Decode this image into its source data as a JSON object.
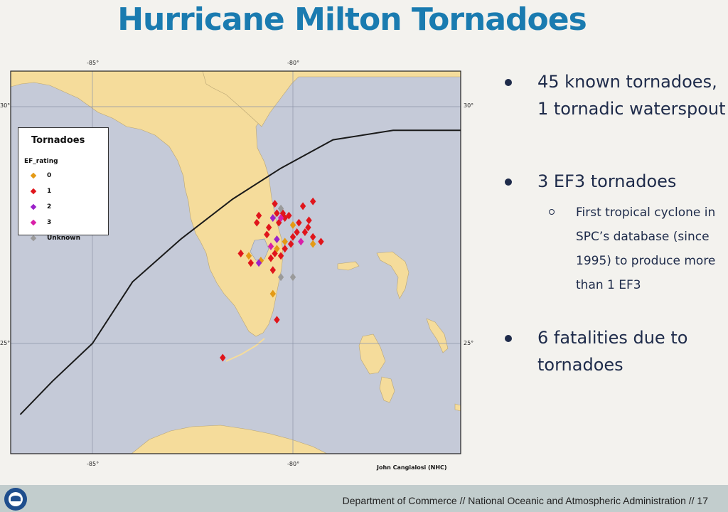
{
  "slide": {
    "title": "Hurricane Milton Tornadoes"
  },
  "map": {
    "lon_ticks": [
      "-85°",
      "-80°"
    ],
    "lat_ticks": [
      "30°",
      "25°"
    ],
    "credit": "John Cangialosi (NHC)",
    "colors": {
      "water": "#c5cad8",
      "land": "#f5dc9b",
      "track": "#1a1a1a",
      "grid": "#8d95a8"
    },
    "legend": {
      "title": "Tornadoes",
      "subtitle": "EF_rating",
      "items": [
        {
          "label": "0",
          "color": "#e49a15"
        },
        {
          "label": "1",
          "color": "#e0151b"
        },
        {
          "label": "2",
          "color": "#9b22c9"
        },
        {
          "label": "3",
          "color": "#d91fa8"
        },
        {
          "label": "Unknown",
          "color": "#9a9a9a"
        }
      ]
    },
    "tornadoes": [
      {
        "lon": -79.5,
        "lat": 28.0,
        "rating": "1"
      },
      {
        "lon": -79.6,
        "lat": 27.6,
        "rating": "1"
      },
      {
        "lon": -79.62,
        "lat": 27.45,
        "rating": "1"
      },
      {
        "lon": -79.7,
        "lat": 27.35,
        "rating": "1"
      },
      {
        "lon": -79.5,
        "lat": 27.25,
        "rating": "1"
      },
      {
        "lon": -79.3,
        "lat": 27.15,
        "rating": "1"
      },
      {
        "lon": -79.5,
        "lat": 27.1,
        "rating": "0"
      },
      {
        "lon": -79.75,
        "lat": 27.9,
        "rating": "1"
      },
      {
        "lon": -79.85,
        "lat": 27.55,
        "rating": "1"
      },
      {
        "lon": -79.9,
        "lat": 27.35,
        "rating": "1"
      },
      {
        "lon": -80.0,
        "lat": 27.25,
        "rating": "1"
      },
      {
        "lon": -80.05,
        "lat": 27.1,
        "rating": "1"
      },
      {
        "lon": -80.1,
        "lat": 27.7,
        "rating": "1"
      },
      {
        "lon": -80.2,
        "lat": 27.65,
        "rating": "1"
      },
      {
        "lon": -80.25,
        "lat": 27.75,
        "rating": "1"
      },
      {
        "lon": -80.45,
        "lat": 27.95,
        "rating": "1"
      },
      {
        "lon": -80.4,
        "lat": 27.75,
        "rating": "1"
      },
      {
        "lon": -80.35,
        "lat": 27.55,
        "rating": "1"
      },
      {
        "lon": -80.6,
        "lat": 27.45,
        "rating": "1"
      },
      {
        "lon": -80.65,
        "lat": 27.3,
        "rating": "1"
      },
      {
        "lon": -80.85,
        "lat": 27.7,
        "rating": "1"
      },
      {
        "lon": -80.9,
        "lat": 27.55,
        "rating": "1"
      },
      {
        "lon": -80.2,
        "lat": 27.0,
        "rating": "1"
      },
      {
        "lon": -80.3,
        "lat": 26.85,
        "rating": "1"
      },
      {
        "lon": -80.45,
        "lat": 26.9,
        "rating": "1"
      },
      {
        "lon": -80.55,
        "lat": 26.8,
        "rating": "1"
      },
      {
        "lon": -80.5,
        "lat": 26.55,
        "rating": "1"
      },
      {
        "lon": -81.3,
        "lat": 26.9,
        "rating": "1"
      },
      {
        "lon": -81.05,
        "lat": 26.7,
        "rating": "1"
      },
      {
        "lon": -80.4,
        "lat": 25.5,
        "rating": "1"
      },
      {
        "lon": -81.75,
        "lat": 24.7,
        "rating": "1"
      },
      {
        "lon": -80.0,
        "lat": 27.5,
        "rating": "0"
      },
      {
        "lon": -80.2,
        "lat": 27.15,
        "rating": "0"
      },
      {
        "lon": -80.4,
        "lat": 27.0,
        "rating": "0"
      },
      {
        "lon": -81.1,
        "lat": 26.85,
        "rating": "0"
      },
      {
        "lon": -80.8,
        "lat": 26.75,
        "rating": "0"
      },
      {
        "lon": -80.5,
        "lat": 26.05,
        "rating": "0"
      },
      {
        "lon": -80.5,
        "lat": 27.65,
        "rating": "2"
      },
      {
        "lon": -80.4,
        "lat": 27.2,
        "rating": "2"
      },
      {
        "lon": -80.85,
        "lat": 26.7,
        "rating": "2"
      },
      {
        "lon": -80.3,
        "lat": 27.65,
        "rating": "3"
      },
      {
        "lon": -80.55,
        "lat": 27.05,
        "rating": "3"
      },
      {
        "lon": -79.8,
        "lat": 27.15,
        "rating": "3"
      },
      {
        "lon": -80.3,
        "lat": 27.85,
        "rating": "Unknown"
      },
      {
        "lon": -80.3,
        "lat": 26.4,
        "rating": "Unknown"
      },
      {
        "lon": -80.0,
        "lat": 26.4,
        "rating": "Unknown"
      }
    ],
    "track": [
      {
        "lon": -86.8,
        "lat": 23.5
      },
      {
        "lon": -86.0,
        "lat": 24.2
      },
      {
        "lon": -85.0,
        "lat": 25.0
      },
      {
        "lon": -84.0,
        "lat": 26.3
      },
      {
        "lon": -82.8,
        "lat": 27.2
      },
      {
        "lon": -81.5,
        "lat": 28.05
      },
      {
        "lon": -80.3,
        "lat": 28.7
      },
      {
        "lon": -79.0,
        "lat": 29.3
      },
      {
        "lon": -77.5,
        "lat": 29.5
      },
      {
        "lon": -75.8,
        "lat": 29.5
      }
    ]
  },
  "bullets": [
    {
      "lines": [
        "45 known tornadoes,",
        "1 tornadic waterspout"
      ]
    },
    {
      "lines": [
        "3 EF3 tornadoes"
      ],
      "sub": [
        "First tropical cyclone in",
        "SPC’s database (since",
        "1995) to produce more",
        "than 1 EF3"
      ]
    },
    {
      "lines": [
        "6 fatalities due to",
        "tornadoes"
      ]
    }
  ],
  "footer": {
    "text": "Department of Commerce  //  National Oceanic and Atmospheric Administration  //  17",
    "logo_icon": "noaa-logo-icon"
  }
}
